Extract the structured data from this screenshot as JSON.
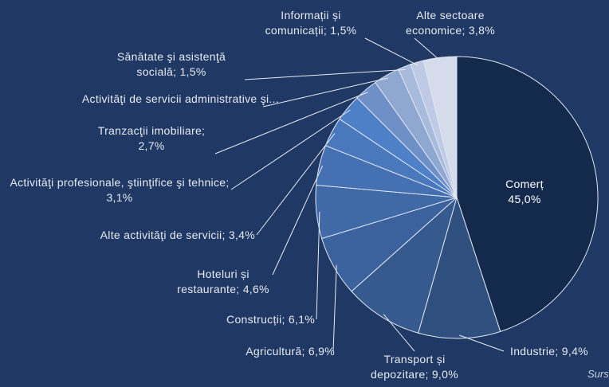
{
  "chart_data": {
    "type": "pie",
    "categories": [
      "Comerț",
      "Industrie",
      "Transport și depozitare",
      "Agricultură",
      "Construcții",
      "Hoteluri și restaurante",
      "Alte activităţi de servicii",
      "Activităţi profesionale, ştiinţifice şi tehnice",
      "Tranzacţii imobiliare",
      "Activităţi de servicii administrative şi...",
      "Sănătate şi asistenţă socială",
      "Informații și comunicații",
      "Alte sectoare economice"
    ],
    "values": [
      45.0,
      9.4,
      9.0,
      6.9,
      6.1,
      4.6,
      3.4,
      3.1,
      2.7,
      3.0,
      1.5,
      1.5,
      3.8
    ],
    "value_labels": [
      "45,0%",
      "9,4%",
      "9,0%",
      "6,9%",
      "6,1%",
      "4,6%",
      "3,4%",
      "3,1%",
      "2,7%",
      null,
      "1,5%",
      "1,5%",
      "3,8%"
    ],
    "label_separator": "; ",
    "colors": [
      "#142a4c",
      "#2f4f7f",
      "#36598e",
      "#3b629c",
      "#4069a8",
      "#4571b3",
      "#4978bd",
      "#4e80c8",
      "#6f90c6",
      "#8fa8d2",
      "#a9bbdc",
      "#bfcbe4",
      "#d6dcec"
    ],
    "source": "Surs"
  }
}
